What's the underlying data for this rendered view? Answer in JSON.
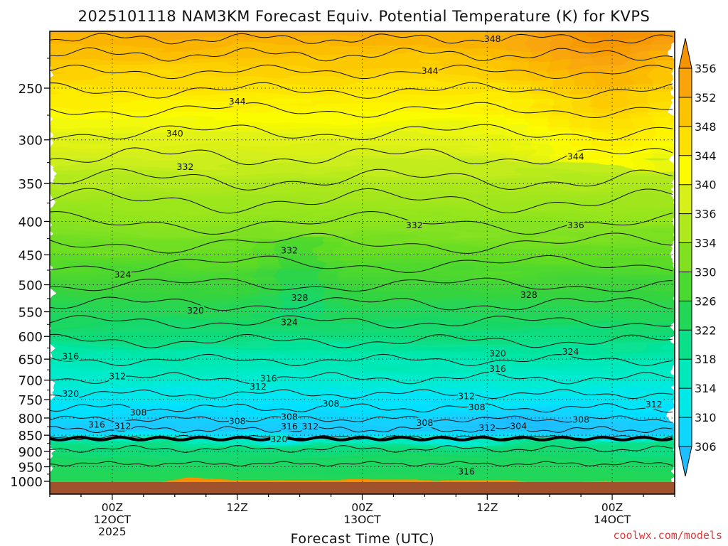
{
  "chart_data": {
    "type": "heatmap",
    "title": "2025101118 NAM3KM Forecast Equiv. Potential Temperature (K) for KVPS",
    "xlabel": "Forecast Time (UTC)",
    "ylabel": "",
    "credit": "coolwx.com/models",
    "x_ticks": [
      {
        "hour": 6,
        "lines": [
          "00Z",
          "12OCT",
          "2025"
        ]
      },
      {
        "hour": 18,
        "lines": [
          "12Z"
        ]
      },
      {
        "hour": 30,
        "lines": [
          "00Z",
          "13OCT"
        ]
      },
      {
        "hour": 42,
        "lines": [
          "12Z"
        ]
      },
      {
        "hour": 54,
        "lines": [
          "00Z",
          "14OCT"
        ]
      }
    ],
    "xlim": [
      0,
      60
    ],
    "y_pressure_levels": [
      250,
      300,
      350,
      400,
      450,
      500,
      550,
      600,
      650,
      700,
      750,
      800,
      850,
      900,
      950,
      1000
    ],
    "ylim": [
      200,
      1000
    ],
    "colorbar_levels": [
      306,
      310,
      314,
      318,
      322,
      326,
      330,
      334,
      336,
      340,
      344,
      348,
      352,
      356
    ],
    "color_stops": [
      {
        "value": 304,
        "color": "#1fb6ff"
      },
      {
        "value": 306,
        "color": "#1ec8ff"
      },
      {
        "value": 310,
        "color": "#00e3ff"
      },
      {
        "value": 314,
        "color": "#00ecd0"
      },
      {
        "value": 318,
        "color": "#00e6a6"
      },
      {
        "value": 322,
        "color": "#14d86e"
      },
      {
        "value": 326,
        "color": "#34d33e"
      },
      {
        "value": 330,
        "color": "#62dc22"
      },
      {
        "value": 334,
        "color": "#9fe61e"
      },
      {
        "value": 338,
        "color": "#d8f01a"
      },
      {
        "value": 342,
        "color": "#fcfc00"
      },
      {
        "value": 346,
        "color": "#fee000"
      },
      {
        "value": 350,
        "color": "#fcc300"
      },
      {
        "value": 354,
        "color": "#f9a40a"
      },
      {
        "value": 358,
        "color": "#f59100"
      }
    ],
    "ground_color": "#a0522d",
    "contour_labels": [
      {
        "value": 348,
        "hour": 42.5,
        "p": 210
      },
      {
        "value": 344,
        "hour": 36.5,
        "p": 235
      },
      {
        "value": 344,
        "hour": 18,
        "p": 262
      },
      {
        "value": 340,
        "hour": 12,
        "p": 293
      },
      {
        "value": 344,
        "hour": 50.5,
        "p": 318
      },
      {
        "value": 332,
        "hour": 13,
        "p": 330
      },
      {
        "value": 332,
        "hour": 35,
        "p": 405
      },
      {
        "value": 336,
        "hour": 50.5,
        "p": 405
      },
      {
        "value": 332,
        "hour": 23,
        "p": 443
      },
      {
        "value": 324,
        "hour": 7,
        "p": 482
      },
      {
        "value": 328,
        "hour": 24,
        "p": 523
      },
      {
        "value": 328,
        "hour": 46,
        "p": 518
      },
      {
        "value": 320,
        "hour": 14,
        "p": 547
      },
      {
        "value": 324,
        "hour": 23,
        "p": 570
      },
      {
        "value": 324,
        "hour": 50,
        "p": 633
      },
      {
        "value": 316,
        "hour": 2,
        "p": 643
      },
      {
        "value": 320,
        "hour": 43,
        "p": 637
      },
      {
        "value": 316,
        "hour": 43,
        "p": 672
      },
      {
        "value": 316,
        "hour": 21,
        "p": 695
      },
      {
        "value": 312,
        "hour": 6.5,
        "p": 690
      },
      {
        "value": 312,
        "hour": 20,
        "p": 716
      },
      {
        "value": 320,
        "hour": 2,
        "p": 734
      },
      {
        "value": 312,
        "hour": 40,
        "p": 740
      },
      {
        "value": 308,
        "hour": 27,
        "p": 760
      },
      {
        "value": 312,
        "hour": 58,
        "p": 762
      },
      {
        "value": 308,
        "hour": 8.5,
        "p": 784
      },
      {
        "value": 308,
        "hour": 41,
        "p": 770
      },
      {
        "value": 308,
        "hour": 23,
        "p": 796
      },
      {
        "value": 308,
        "hour": 18,
        "p": 808
      },
      {
        "value": 308,
        "hour": 36,
        "p": 813
      },
      {
        "value": 308,
        "hour": 51,
        "p": 804
      },
      {
        "value": 316,
        "hour": 4.5,
        "p": 818
      },
      {
        "value": 312,
        "hour": 7,
        "p": 822
      },
      {
        "value": 316,
        "hour": 23,
        "p": 823
      },
      {
        "value": 312,
        "hour": 25,
        "p": 823
      },
      {
        "value": 304,
        "hour": 45,
        "p": 822
      },
      {
        "value": 312,
        "hour": 42,
        "p": 828
      },
      {
        "value": 320,
        "hour": 22,
        "p": 861
      },
      {
        "value": 316,
        "hour": 40,
        "p": 966
      }
    ]
  }
}
